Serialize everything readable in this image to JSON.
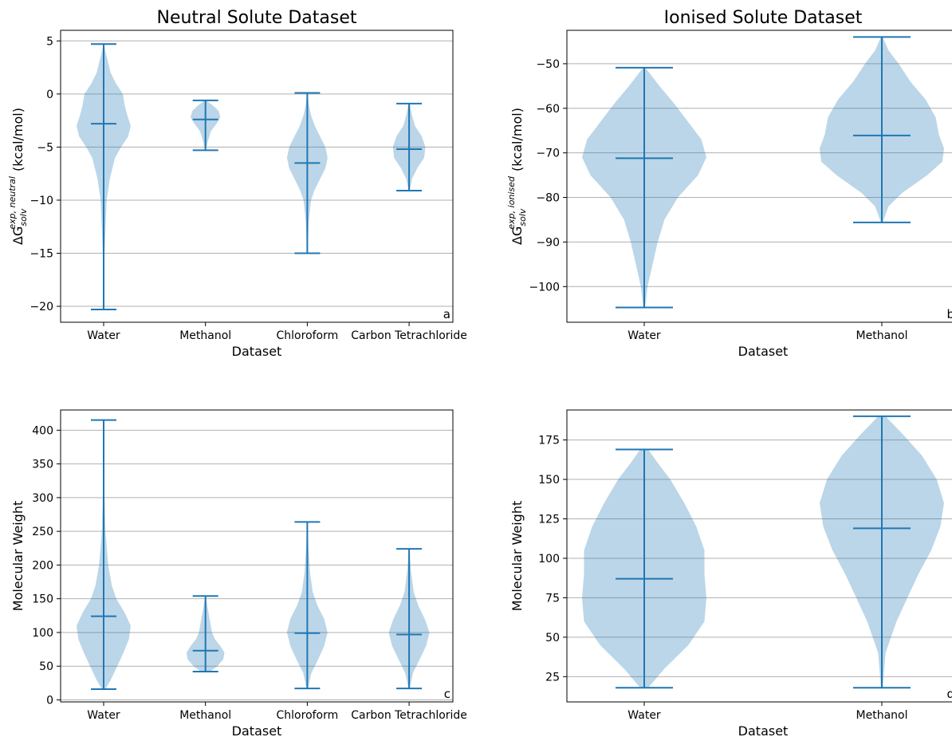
{
  "figure": {
    "background": "#ffffff",
    "violin_fill": "#1f77b4",
    "violin_alpha": 0.3,
    "line_color": "#1f77b4",
    "grid_color": "#b0b0b0"
  },
  "chart_data": [
    {
      "type": "violin",
      "panel": "a",
      "title": "Neutral Solute Dataset",
      "xlabel": "Dataset",
      "ylabel_main": "ΔG",
      "ylabel_sub": "solv",
      "ylabel_sup": "exp, neutral",
      "ylabel_unit": "(kcal/mol)",
      "categories": [
        "Water",
        "Methanol",
        "Chloroform",
        "Carbon Tetrachloride"
      ],
      "yticks": [
        5,
        0,
        -5,
        -10,
        -15,
        -20
      ],
      "ylim": [
        -21.5,
        6.0
      ],
      "grid": "y",
      "violins": [
        {
          "min": -20.3,
          "max": 4.7,
          "mean": -2.8,
          "width": 1.0,
          "density": [
            [
              -20.3,
              0.002
            ],
            [
              -15,
              0.01
            ],
            [
              -10,
              0.035
            ],
            [
              -8,
              0.07
            ],
            [
              -6,
              0.13
            ],
            [
              -5,
              0.2
            ],
            [
              -4,
              0.28
            ],
            [
              -3,
              0.31
            ],
            [
              -2,
              0.27
            ],
            [
              -1,
              0.24
            ],
            [
              0,
              0.22
            ],
            [
              1,
              0.14
            ],
            [
              2,
              0.08
            ],
            [
              3,
              0.05
            ],
            [
              4,
              0.02
            ],
            [
              4.7,
              0.002
            ]
          ]
        },
        {
          "min": -5.3,
          "max": -0.6,
          "mean": -2.4,
          "width": 0.55,
          "density": [
            [
              -5.3,
              0.01
            ],
            [
              -4.5,
              0.04
            ],
            [
              -3.5,
              0.1
            ],
            [
              -2.8,
              0.2
            ],
            [
              -2.2,
              0.27
            ],
            [
              -1.6,
              0.24
            ],
            [
              -1.1,
              0.14
            ],
            [
              -0.6,
              0.01
            ]
          ]
        },
        {
          "min": -15.0,
          "max": 0.1,
          "mean": -6.5,
          "width": 0.75,
          "density": [
            [
              -15.0,
              0.002
            ],
            [
              -12,
              0.02
            ],
            [
              -10,
              0.05
            ],
            [
              -9,
              0.1
            ],
            [
              -8,
              0.17
            ],
            [
              -7,
              0.24
            ],
            [
              -6,
              0.27
            ],
            [
              -5,
              0.24
            ],
            [
              -4,
              0.17
            ],
            [
              -3,
              0.1
            ],
            [
              -2,
              0.05
            ],
            [
              -1,
              0.02
            ],
            [
              0.1,
              0.002
            ]
          ]
        },
        {
          "min": -9.1,
          "max": -0.9,
          "mean": -5.2,
          "width": 0.6,
          "density": [
            [
              -9.1,
              0.01
            ],
            [
              -8,
              0.05
            ],
            [
              -7,
              0.14
            ],
            [
              -6,
              0.26
            ],
            [
              -5,
              0.28
            ],
            [
              -4,
              0.22
            ],
            [
              -3,
              0.1
            ],
            [
              -2,
              0.05
            ],
            [
              -0.9,
              0.01
            ]
          ]
        }
      ]
    },
    {
      "type": "violin",
      "panel": "b",
      "title": "Ionised Solute Dataset",
      "xlabel": "Dataset",
      "ylabel_main": "ΔG",
      "ylabel_sub": "solv",
      "ylabel_sup": "exp, ionised",
      "ylabel_unit": "(kcal/mol)",
      "categories": [
        "Water",
        "Methanol"
      ],
      "yticks": [
        -50,
        -60,
        -70,
        -80,
        -90,
        -100
      ],
      "ylim": [
        -108,
        -42.5
      ],
      "grid": "y",
      "violins": [
        {
          "min": -104.7,
          "max": -50.9,
          "mean": -71.2,
          "width": 1.0,
          "density": [
            [
              -104.7,
              0.005
            ],
            [
              -100,
              0.02
            ],
            [
              -95,
              0.05
            ],
            [
              -90,
              0.08
            ],
            [
              -85,
              0.12
            ],
            [
              -80,
              0.2
            ],
            [
              -75,
              0.32
            ],
            [
              -71,
              0.37
            ],
            [
              -67,
              0.34
            ],
            [
              -63,
              0.26
            ],
            [
              -59,
              0.18
            ],
            [
              -55,
              0.09
            ],
            [
              -52,
              0.03
            ],
            [
              -50.9,
              0.005
            ]
          ]
        },
        {
          "min": -85.6,
          "max": -44.0,
          "mean": -66.1,
          "width": 1.0,
          "density": [
            [
              -85.6,
              0.005
            ],
            [
              -82,
              0.04
            ],
            [
              -79,
              0.12
            ],
            [
              -75,
              0.27
            ],
            [
              -72,
              0.36
            ],
            [
              -69,
              0.37
            ],
            [
              -66,
              0.34
            ],
            [
              -62,
              0.32
            ],
            [
              -58,
              0.26
            ],
            [
              -54,
              0.17
            ],
            [
              -50,
              0.1
            ],
            [
              -47,
              0.04
            ],
            [
              -44,
              0.005
            ]
          ]
        }
      ]
    },
    {
      "type": "violin",
      "panel": "c",
      "title": "",
      "xlabel": "Dataset",
      "ylabel": "Molecular Weight",
      "categories": [
        "Water",
        "Methanol",
        "Chloroform",
        "Carbon Tetrachloride"
      ],
      "yticks": [
        400,
        350,
        300,
        250,
        200,
        150,
        100,
        50,
        0
      ],
      "ylim": [
        -3,
        430
      ],
      "grid": "y",
      "violins": [
        {
          "min": 16,
          "max": 415,
          "mean": 124,
          "width": 1.0,
          "density": [
            [
              16,
              0.02
            ],
            [
              30,
              0.08
            ],
            [
              50,
              0.15
            ],
            [
              70,
              0.22
            ],
            [
              90,
              0.28
            ],
            [
              110,
              0.3
            ],
            [
              130,
              0.23
            ],
            [
              150,
              0.14
            ],
            [
              170,
              0.09
            ],
            [
              200,
              0.05
            ],
            [
              250,
              0.02
            ],
            [
              300,
              0.01
            ],
            [
              415,
              0.002
            ]
          ]
        },
        {
          "min": 42,
          "max": 154,
          "mean": 73,
          "width": 0.7,
          "density": [
            [
              42,
              0.08
            ],
            [
              50,
              0.2
            ],
            [
              60,
              0.3
            ],
            [
              70,
              0.32
            ],
            [
              80,
              0.25
            ],
            [
              90,
              0.16
            ],
            [
              100,
              0.11
            ],
            [
              120,
              0.07
            ],
            [
              140,
              0.03
            ],
            [
              154,
              0.005
            ]
          ]
        },
        {
          "min": 17,
          "max": 264,
          "mean": 99,
          "width": 0.75,
          "density": [
            [
              17,
              0.01
            ],
            [
              40,
              0.06
            ],
            [
              60,
              0.16
            ],
            [
              80,
              0.25
            ],
            [
              100,
              0.3
            ],
            [
              120,
              0.25
            ],
            [
              140,
              0.15
            ],
            [
              160,
              0.08
            ],
            [
              190,
              0.04
            ],
            [
              230,
              0.015
            ],
            [
              264,
              0.003
            ]
          ]
        },
        {
          "min": 17,
          "max": 224,
          "mean": 97,
          "width": 0.75,
          "density": [
            [
              17,
              0.01
            ],
            [
              40,
              0.06
            ],
            [
              60,
              0.16
            ],
            [
              80,
              0.26
            ],
            [
              100,
              0.31
            ],
            [
              120,
              0.24
            ],
            [
              140,
              0.14
            ],
            [
              160,
              0.07
            ],
            [
              190,
              0.03
            ],
            [
              224,
              0.003
            ]
          ]
        }
      ]
    },
    {
      "type": "violin",
      "panel": "d",
      "title": "",
      "xlabel": "Dataset",
      "ylabel": "Molecular Weight",
      "categories": [
        "Water",
        "Methanol"
      ],
      "yticks": [
        175,
        150,
        125,
        100,
        75,
        50,
        25
      ],
      "ylim": [
        9,
        194
      ],
      "grid": "y",
      "violins": [
        {
          "min": 18,
          "max": 169,
          "mean": 87,
          "width": 1.0,
          "density": [
            [
              18,
              0.02
            ],
            [
              30,
              0.1
            ],
            [
              45,
              0.22
            ],
            [
              60,
              0.3
            ],
            [
              75,
              0.31
            ],
            [
              90,
              0.3
            ],
            [
              105,
              0.3
            ],
            [
              120,
              0.26
            ],
            [
              135,
              0.2
            ],
            [
              150,
              0.13
            ],
            [
              160,
              0.07
            ],
            [
              169,
              0.02
            ]
          ]
        },
        {
          "min": 18,
          "max": 190,
          "mean": 119,
          "width": 1.0,
          "density": [
            [
              18,
              0.005
            ],
            [
              40,
              0.02
            ],
            [
              60,
              0.08
            ],
            [
              75,
              0.14
            ],
            [
              90,
              0.2
            ],
            [
              105,
              0.27
            ],
            [
              120,
              0.32
            ],
            [
              135,
              0.34
            ],
            [
              150,
              0.3
            ],
            [
              165,
              0.22
            ],
            [
              178,
              0.12
            ],
            [
              190,
              0.02
            ]
          ]
        }
      ]
    }
  ]
}
